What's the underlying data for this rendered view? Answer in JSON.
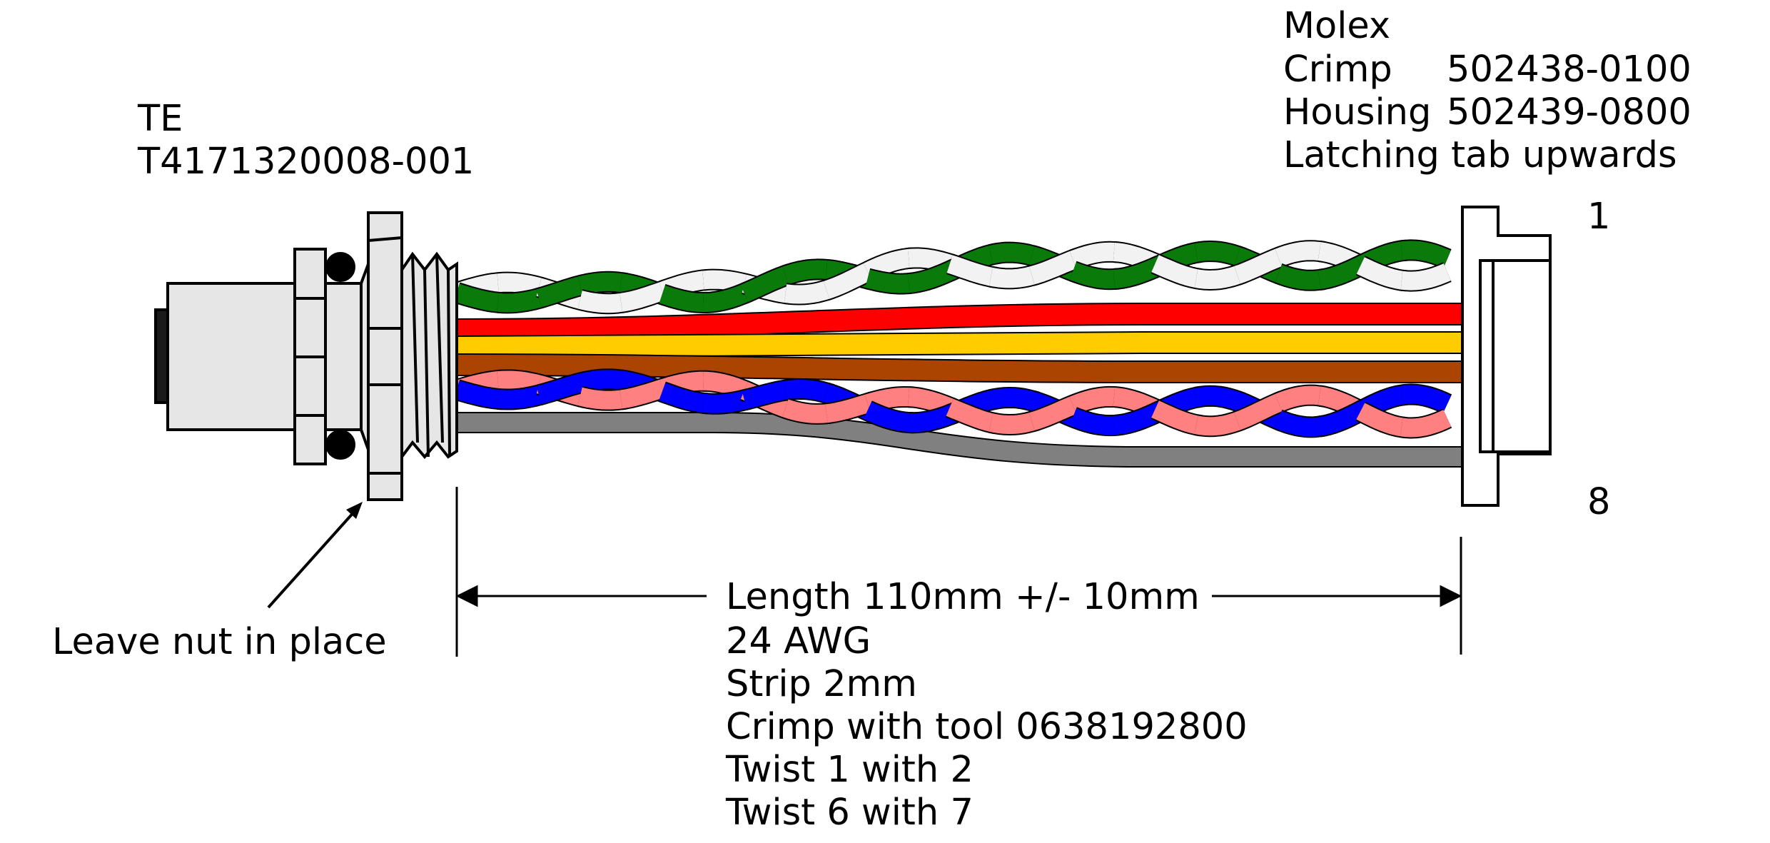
{
  "left_connector": {
    "maker": "TE",
    "part_number": "T4171320008-001"
  },
  "right_connector": {
    "maker": "Molex",
    "crimp_label": "Crimp",
    "crimp_part": "502438-0100",
    "housing_label": "Housing",
    "housing_part": "502439-0800",
    "orientation_note": "Latching tab upwards",
    "pin_first": "1",
    "pin_last": "8"
  },
  "nut_note": "Leave nut in place",
  "spec": {
    "length": "Length 110mm +/- 10mm",
    "gauge": "24 AWG",
    "strip": "Strip 2mm",
    "crimp_tool": "Crimp with tool 0638192800",
    "twist_a": "Twist 1 with 2",
    "twist_b": "Twist 6 with 7"
  },
  "colors": {
    "wire_1": "#0a7a0a",
    "wire_2": "#f2f2f2",
    "wire_3": "#ff0000",
    "wire_4": "#ffcc00",
    "wire_5": "#aa4400",
    "wire_6": "#0000ff",
    "wire_7": "#ff8080",
    "wire_8": "#808080",
    "connector_fill": "#e6e6e6"
  }
}
